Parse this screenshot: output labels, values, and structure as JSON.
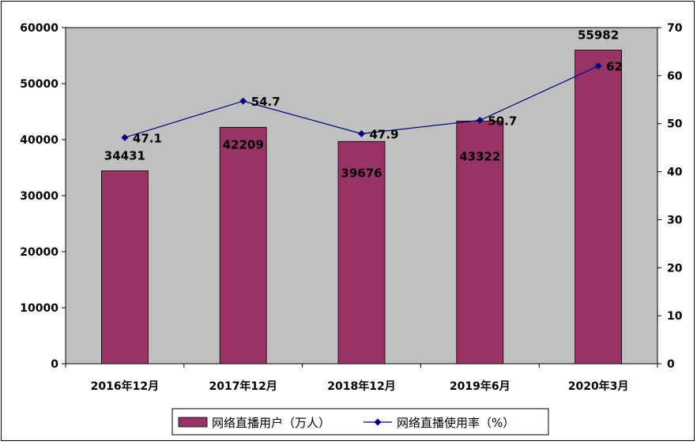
{
  "chart_data": {
    "type": "bar",
    "categories": [
      "2016年12月",
      "2017年12月",
      "2018年12月",
      "2019年6月",
      "2020年3月"
    ],
    "series": [
      {
        "name": "网络直播用户（万人）",
        "type": "bar",
        "axis": "left",
        "values": [
          34431,
          42209,
          39676,
          43322,
          55982
        ],
        "color": "#993366"
      },
      {
        "name": "网络直播使用率（%）",
        "type": "line",
        "axis": "right",
        "values": [
          47.1,
          54.7,
          47.9,
          50.7,
          62
        ],
        "color": "#000080"
      }
    ],
    "y_left": {
      "min": 0,
      "max": 60000,
      "ticks": [
        0,
        10000,
        20000,
        30000,
        40000,
        50000,
        60000
      ]
    },
    "y_right": {
      "min": 0,
      "max": 70,
      "ticks": [
        0,
        10,
        20,
        30,
        40,
        50,
        60,
        70
      ]
    },
    "plot_background": "#c0c0c0",
    "legend_position": "bottom"
  }
}
